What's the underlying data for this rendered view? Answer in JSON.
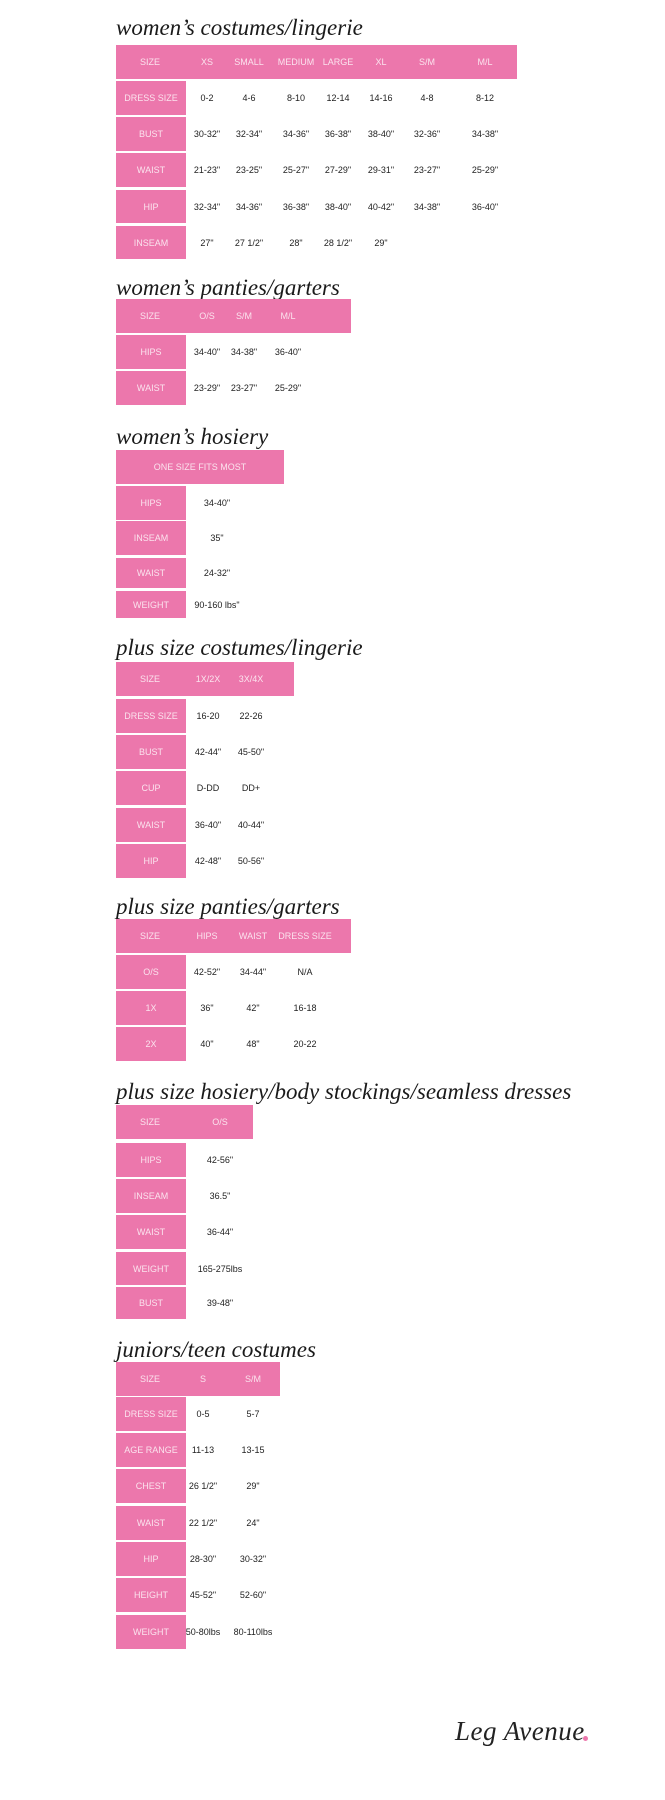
{
  "accent_color": "#ec77ac",
  "sections": [
    {
      "title": "women’s costumes/lingerie",
      "header": [
        "SIZE",
        "XS",
        "SMALL",
        "MEDIUM",
        "LARGE",
        "XL",
        "S/M",
        "M/L"
      ],
      "rows": [
        {
          "label": "DRESS SIZE",
          "values": [
            "0-2",
            "4-6",
            "8-10",
            "12-14",
            "14-16",
            "4-8",
            "8-12"
          ]
        },
        {
          "label": "BUST",
          "values": [
            "30-32\"",
            "32-34\"",
            "34-36\"",
            "36-38\"",
            "38-40\"",
            "32-36\"",
            "34-38\""
          ]
        },
        {
          "label": "WAIST",
          "values": [
            "21-23\"",
            "23-25\"",
            "25-27\"",
            "27-29\"",
            "29-31\"",
            "23-27\"",
            "25-29\""
          ]
        },
        {
          "label": "HIP",
          "values": [
            "32-34\"",
            "34-36\"",
            "36-38\"",
            "38-40\"",
            "40-42\"",
            "34-38\"",
            "36-40\""
          ]
        },
        {
          "label": "INSEAM",
          "values": [
            "27\"",
            "27 1/2\"",
            "28\"",
            "28 1/2\"",
            "29\""
          ]
        }
      ]
    },
    {
      "title": "women’s panties/garters",
      "header": [
        "SIZE",
        "O/S",
        "S/M",
        "M/L"
      ],
      "rows": [
        {
          "label": "HIPS",
          "values": [
            "34-40\"",
            "34-38\"",
            "36-40\""
          ]
        },
        {
          "label": "WAIST",
          "values": [
            "23-29\"",
            "23-27\"",
            "25-29\""
          ]
        }
      ]
    },
    {
      "title": "women’s hosiery",
      "header": [
        "ONE SIZE FITS MOST"
      ],
      "rows": [
        {
          "label": "HIPS",
          "values": [
            "34-40\""
          ]
        },
        {
          "label": "INSEAM",
          "values": [
            "35\""
          ]
        },
        {
          "label": "WAIST",
          "values": [
            "24-32\""
          ]
        },
        {
          "label": "WEIGHT",
          "values": [
            "90-160 lbs\""
          ]
        }
      ]
    },
    {
      "title": "plus size costumes/lingerie",
      "header": [
        "SIZE",
        "1X/2X",
        "3X/4X"
      ],
      "rows": [
        {
          "label": "DRESS SIZE",
          "values": [
            "16-20",
            "22-26"
          ]
        },
        {
          "label": "BUST",
          "values": [
            "42-44\"",
            "45-50\""
          ]
        },
        {
          "label": "CUP",
          "values": [
            "D-DD",
            "DD+"
          ]
        },
        {
          "label": "WAIST",
          "values": [
            "36-40\"",
            "40-44\""
          ]
        },
        {
          "label": "HIP",
          "values": [
            "42-48\"",
            "50-56\""
          ]
        }
      ]
    },
    {
      "title": "plus size panties/garters",
      "header": [
        "SIZE",
        "HIPS",
        "WAIST",
        "DRESS SIZE"
      ],
      "rows": [
        {
          "label": "O/S",
          "values": [
            "42-52\"",
            "34-44\"",
            "N/A"
          ]
        },
        {
          "label": "1X",
          "values": [
            "36\"",
            "42\"",
            "16-18"
          ]
        },
        {
          "label": "2X",
          "values": [
            "40\"",
            "48\"",
            "20-22"
          ]
        }
      ]
    },
    {
      "title": "plus size hosiery/body stockings/seamless dresses",
      "header": [
        "SIZE",
        "O/S"
      ],
      "rows": [
        {
          "label": "HIPS",
          "values": [
            "42-56\""
          ]
        },
        {
          "label": "INSEAM",
          "values": [
            "36.5\""
          ]
        },
        {
          "label": "WAIST",
          "values": [
            "36-44\""
          ]
        },
        {
          "label": "WEIGHT",
          "values": [
            "165-275lbs"
          ]
        },
        {
          "label": "BUST",
          "values": [
            "39-48\""
          ]
        }
      ]
    },
    {
      "title": "juniors/teen costumes",
      "header": [
        "SIZE",
        "S",
        "S/M"
      ],
      "rows": [
        {
          "label": "DRESS SIZE",
          "values": [
            "0-5",
            "5-7"
          ]
        },
        {
          "label": "AGE RANGE",
          "values": [
            "11-13",
            "13-15"
          ]
        },
        {
          "label": "CHEST",
          "values": [
            "26 1/2\"",
            "29\""
          ]
        },
        {
          "label": "WAIST",
          "values": [
            "22 1/2\"",
            "24\""
          ]
        },
        {
          "label": "HIP",
          "values": [
            "28-30\"",
            "30-32\""
          ]
        },
        {
          "label": "HEIGHT",
          "values": [
            "45-52\"",
            "52-60\""
          ]
        },
        {
          "label": "WEIGHT",
          "values": [
            "50-80lbs",
            "80-110lbs"
          ]
        }
      ]
    }
  ],
  "logo": {
    "text": "Leg Avenue"
  }
}
